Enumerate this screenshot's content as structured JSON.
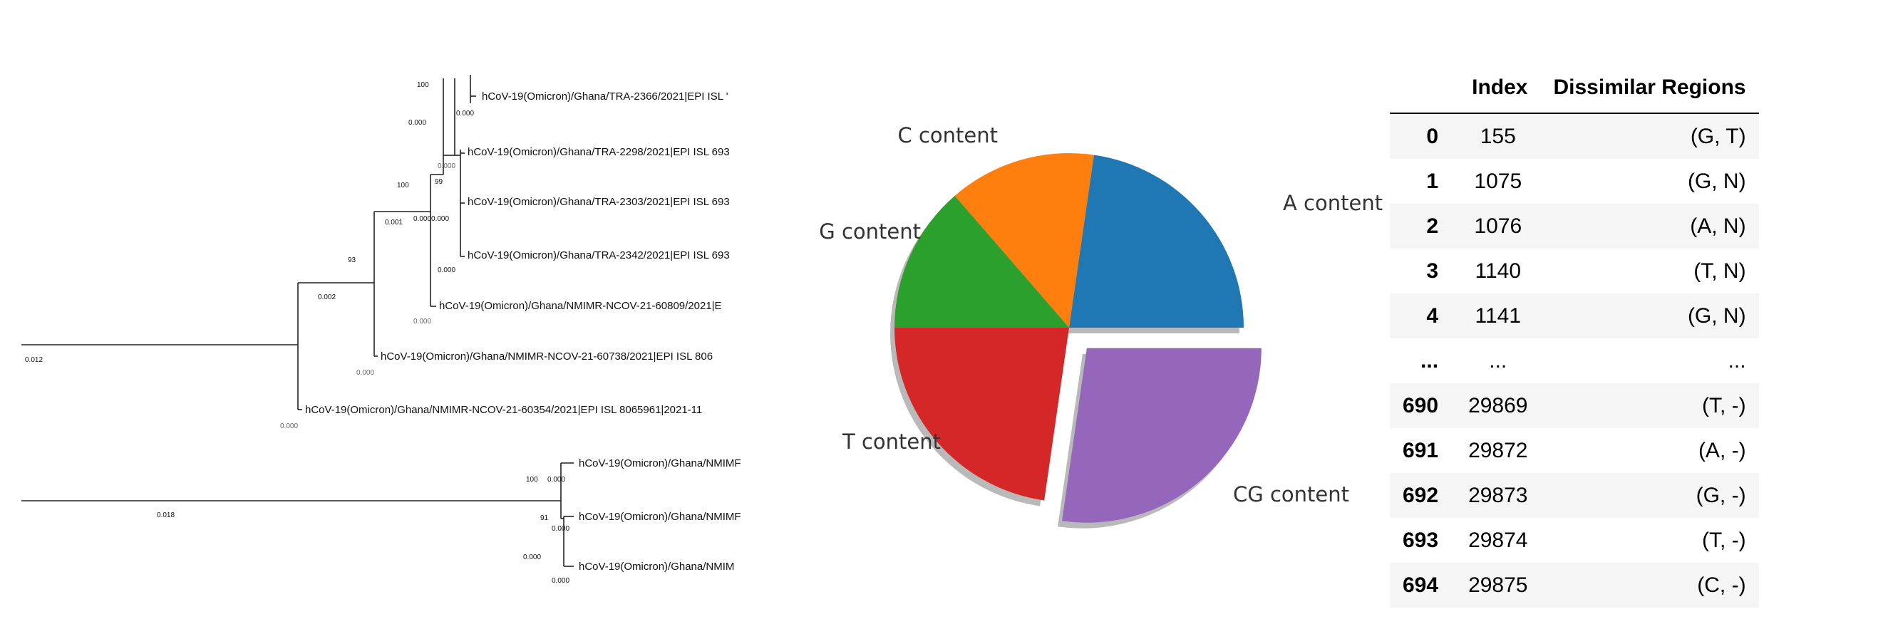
{
  "tree": {
    "scale_label": "0.012",
    "scale_label_lower": "0.018",
    "upper_clade": {
      "leaves": [
        "hCoV-19(Omicron)/Ghana/TRA-2366/2021|EPI ISL '",
        "hCoV-19(Omicron)/Ghana/TRA-2298/2021|EPI ISL 693",
        "hCoV-19(Omicron)/Ghana/TRA-2303/2021|EPI ISL 693",
        "hCoV-19(Omicron)/Ghana/TRA-2342/2021|EPI ISL 693",
        "hCoV-19(Omicron)/Ghana/NMIMR-NCOV-21-60809/2021|E",
        "hCoV-19(Omicron)/Ghana/NMIMR-NCOV-21-60738/2021|EPI ISL 806",
        "hCoV-19(Omicron)/Ghana/NMIMR-NCOV-21-60354/2021|EPI ISL 8065961|2021-11"
      ],
      "support": {
        "n100_top": "100",
        "n99": "99",
        "n100_mid": "100",
        "n93": "93"
      },
      "branch_lengths": {
        "b_top": "0.000",
        "b_0003": "0.000",
        "b_01": "0.000",
        "b_02": "0.000",
        "b_000000": "0.0000.000",
        "b_001": "0.001",
        "b_leaf4": "0.000",
        "b_002": "0.002",
        "b_leaf5": "0.000",
        "b_leaf6": "0.000",
        "b_leaf7": "0.000"
      }
    },
    "lower_clade": {
      "leaves": [
        "hCoV-19(Omicron)/Ghana/NMIMF",
        "hCoV-19(Omicron)/Ghana/NMIMF",
        "hCoV-19(Omicron)/Ghana/NMIM"
      ],
      "support": {
        "n100": "100",
        "n91": "91"
      },
      "branch_lengths": {
        "l1": "0.000",
        "l2": "0.000",
        "l3": "0.000",
        "l4": "0.000"
      }
    }
  },
  "chart_data": {
    "type": "pie",
    "series": [
      {
        "label": "A content",
        "value": 25,
        "color": "#1f77b4",
        "explode": false
      },
      {
        "label": "C content",
        "value": 15,
        "color": "#ff7f0e",
        "explode": false
      },
      {
        "label": "G content",
        "value": 15,
        "color": "#2ca02c",
        "explode": false
      },
      {
        "label": "T content",
        "value": 25,
        "color": "#d62728",
        "explode": false
      },
      {
        "label": "CG content",
        "value": 30,
        "color": "#9467bd",
        "explode": true
      }
    ],
    "start_angle_deg": 0,
    "direction": "counterclockwise",
    "shadow": true
  },
  "table": {
    "columns": [
      "",
      "Index",
      "Dissimilar Regions"
    ],
    "rows": [
      [
        "0",
        "155",
        "(G, T)"
      ],
      [
        "1",
        "1075",
        "(G, N)"
      ],
      [
        "2",
        "1076",
        "(A, N)"
      ],
      [
        "3",
        "1140",
        "(T, N)"
      ],
      [
        "4",
        "1141",
        "(G, N)"
      ],
      [
        "...",
        "...",
        "..."
      ],
      [
        "690",
        "29869",
        "(T, -)"
      ],
      [
        "691",
        "29872",
        "(A, -)"
      ],
      [
        "692",
        "29873",
        "(G, -)"
      ],
      [
        "693",
        "29874",
        "(T, -)"
      ],
      [
        "694",
        "29875",
        "(C, -)"
      ]
    ]
  }
}
